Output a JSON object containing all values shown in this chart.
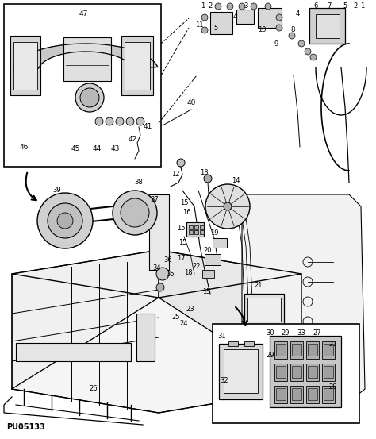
{
  "background_color": "#ffffff",
  "figure_width": 4.74,
  "figure_height": 5.53,
  "dpi": 100,
  "watermark_text": "PU05133",
  "watermark_fontsize": 7,
  "image_extent": [
    0,
    474,
    0,
    553
  ]
}
